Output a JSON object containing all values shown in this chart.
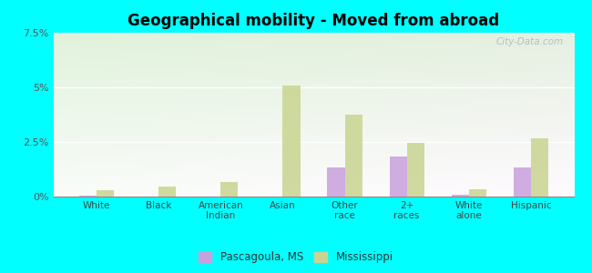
{
  "title": "Geographical mobility - Moved from abroad",
  "categories": [
    "White",
    "Black",
    "American\nIndian",
    "Asian",
    "Other\nrace",
    "2+\nraces",
    "White\nalone",
    "Hispanic"
  ],
  "pascagoula_values": [
    0.05,
    0.0,
    0.0,
    0.0,
    1.35,
    1.85,
    0.08,
    1.35
  ],
  "mississippi_values": [
    0.28,
    0.45,
    0.65,
    5.1,
    3.75,
    2.45,
    0.35,
    2.65
  ],
  "pascagoula_color": "#c9a0dc",
  "mississippi_color": "#c8d490",
  "ylim": [
    0,
    7.5
  ],
  "yticks": [
    0,
    2.5,
    5.0,
    7.5
  ],
  "ytick_labels": [
    "0%",
    "2.5%",
    "5%",
    "7.5%"
  ],
  "background_color": "#00ffff",
  "bar_width": 0.28,
  "legend_pascagoula": "Pascagoula, MS",
  "legend_mississippi": "Mississippi",
  "watermark": "City-Data.com"
}
